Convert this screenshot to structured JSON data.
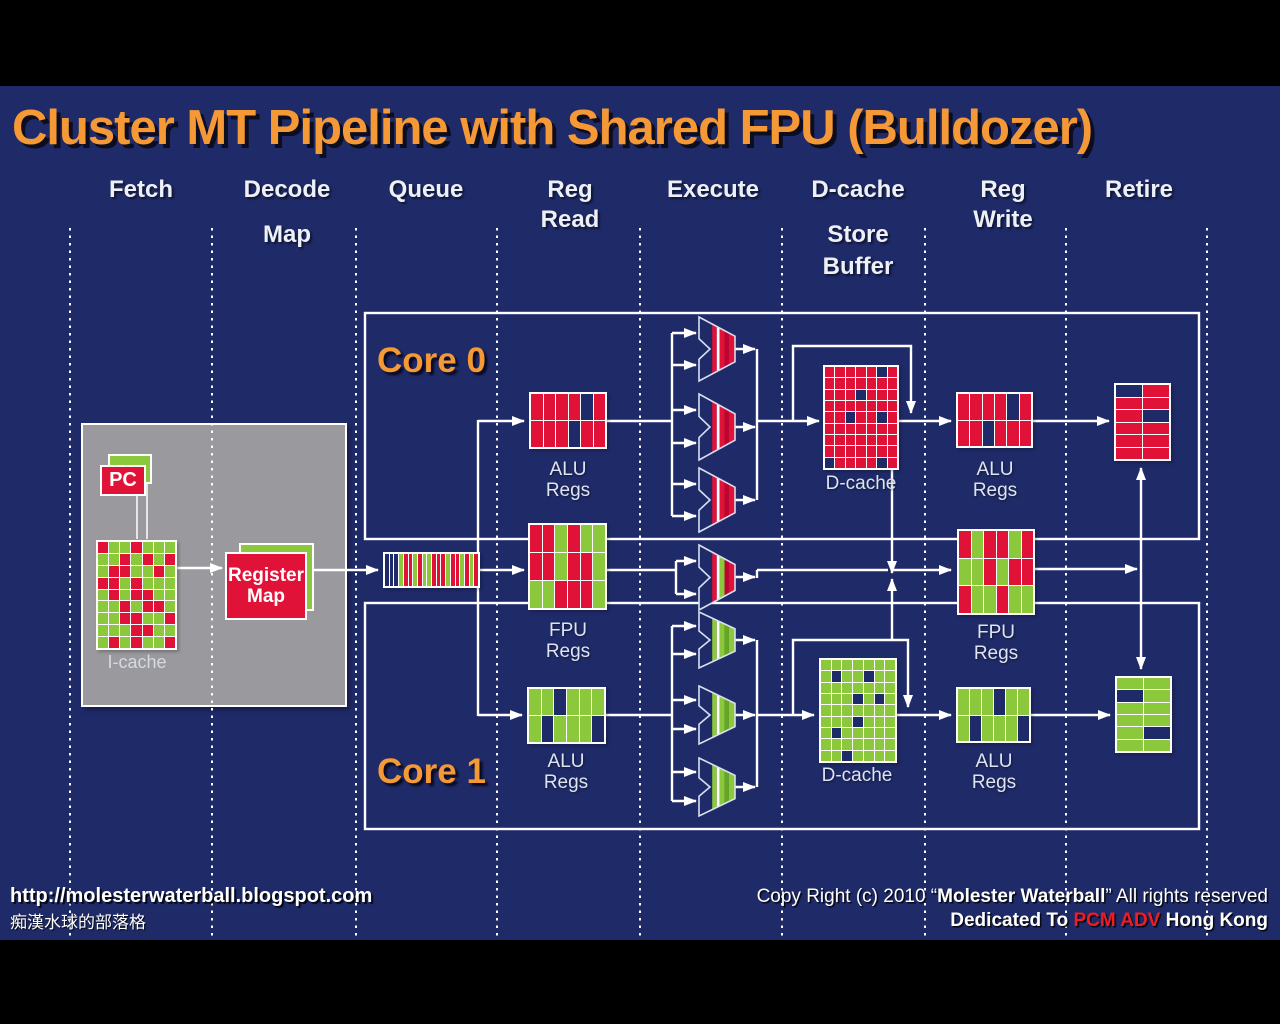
{
  "title": "Cluster MT Pipeline with Shared FPU (Bulldozer)",
  "columns": [
    {
      "label": "Fetch"
    },
    {
      "label": "Decode",
      "sub": "Map"
    },
    {
      "label": "Queue"
    },
    {
      "label": "Reg",
      "label2": "Read"
    },
    {
      "label": "Execute"
    },
    {
      "label": "D-cache",
      "sub": "Store",
      "sub2": "Buffer"
    },
    {
      "label": "Reg",
      "label2": "Write"
    },
    {
      "label": "Retire"
    }
  ],
  "cores": {
    "core0": "Core 0",
    "core1": "Core 1"
  },
  "fetch_stage": {
    "pc": "PC",
    "icache_label": "I-cache",
    "register_map_line1": "Register",
    "register_map_line2": "Map"
  },
  "labels": {
    "alu_regs_line1": "ALU",
    "alu_regs_line2": "Regs",
    "fpu_regs_line1": "FPU",
    "fpu_regs_line2": "Regs",
    "dcache": "D-cache"
  },
  "grids": {
    "icache": [
      "RGGRGGG",
      "GGRGRGR",
      "GRRGGRG",
      "RRGRGGG",
      "GRGRRGG",
      "GGRGRRG",
      "GGRRGGR",
      "GGGRRGG",
      "GRGRGGR"
    ],
    "queue": "DDDGRRGRGGRRRGRRGRGR",
    "alu0_read": [
      "RRRRDR",
      "RRRDRR"
    ],
    "fpu_read": [
      "RRGRGG",
      "RRGRRG",
      "GGRRRG"
    ],
    "alu1_read": [
      "GGDGGG",
      "GDGGGD"
    ],
    "dcache0": [
      "RRRRRDR",
      "RRRRRRR",
      "RRRDRRR",
      "RRRRRRR",
      "RRDRRDR",
      "RRRRRRR",
      "RRRRRRR",
      "RRRRRRR",
      "DRRRRDR"
    ],
    "dcache1": [
      "GGGGGGG",
      "GDGGDGG",
      "GGGGGGG",
      "GGGDGDG",
      "GGGGGGG",
      "GGGDGGG",
      "GDGGGGG",
      "GGGGGGG",
      "GGDGGGG"
    ],
    "alu0_write": [
      "RRRRDR",
      "RRDRRR"
    ],
    "fpu_write": [
      "RGRRGR",
      "GGRGRR",
      "RGGRGG"
    ],
    "alu1_write": [
      "GGGDGG",
      "GDGGGD"
    ],
    "retire0": [
      "DR",
      "RR",
      "RD",
      "RR",
      "RR",
      "RR"
    ],
    "retire1": [
      "GG",
      "DG",
      "GG",
      "GG",
      "GD",
      "GG"
    ]
  },
  "footer": {
    "url": "http://molesterwaterball.blogspot.com",
    "blog_name_cn": "痴漢水球的部落格",
    "copyright_prefix": "Copy Right (c) 2010 “",
    "copyright_name": "Molester Waterball",
    "copyright_suffix": "” All rights reserved",
    "dedication_prefix": "Dedicated To ",
    "dedication_highlight": "PCM ADV",
    "dedication_suffix": " Hong Kong"
  },
  "colors": {
    "background": "#1f2b69",
    "red": "#e11238",
    "red_dark": "#c4002f",
    "green": "#8cc83c",
    "green_dark": "#63a81e",
    "gray_box": "#9a9a9e",
    "orange": "#f59836",
    "line_white": "#ffffff",
    "text_white": "#e9ecf5",
    "dedication_red": "#ee1c25",
    "bar_black": "#000000"
  }
}
